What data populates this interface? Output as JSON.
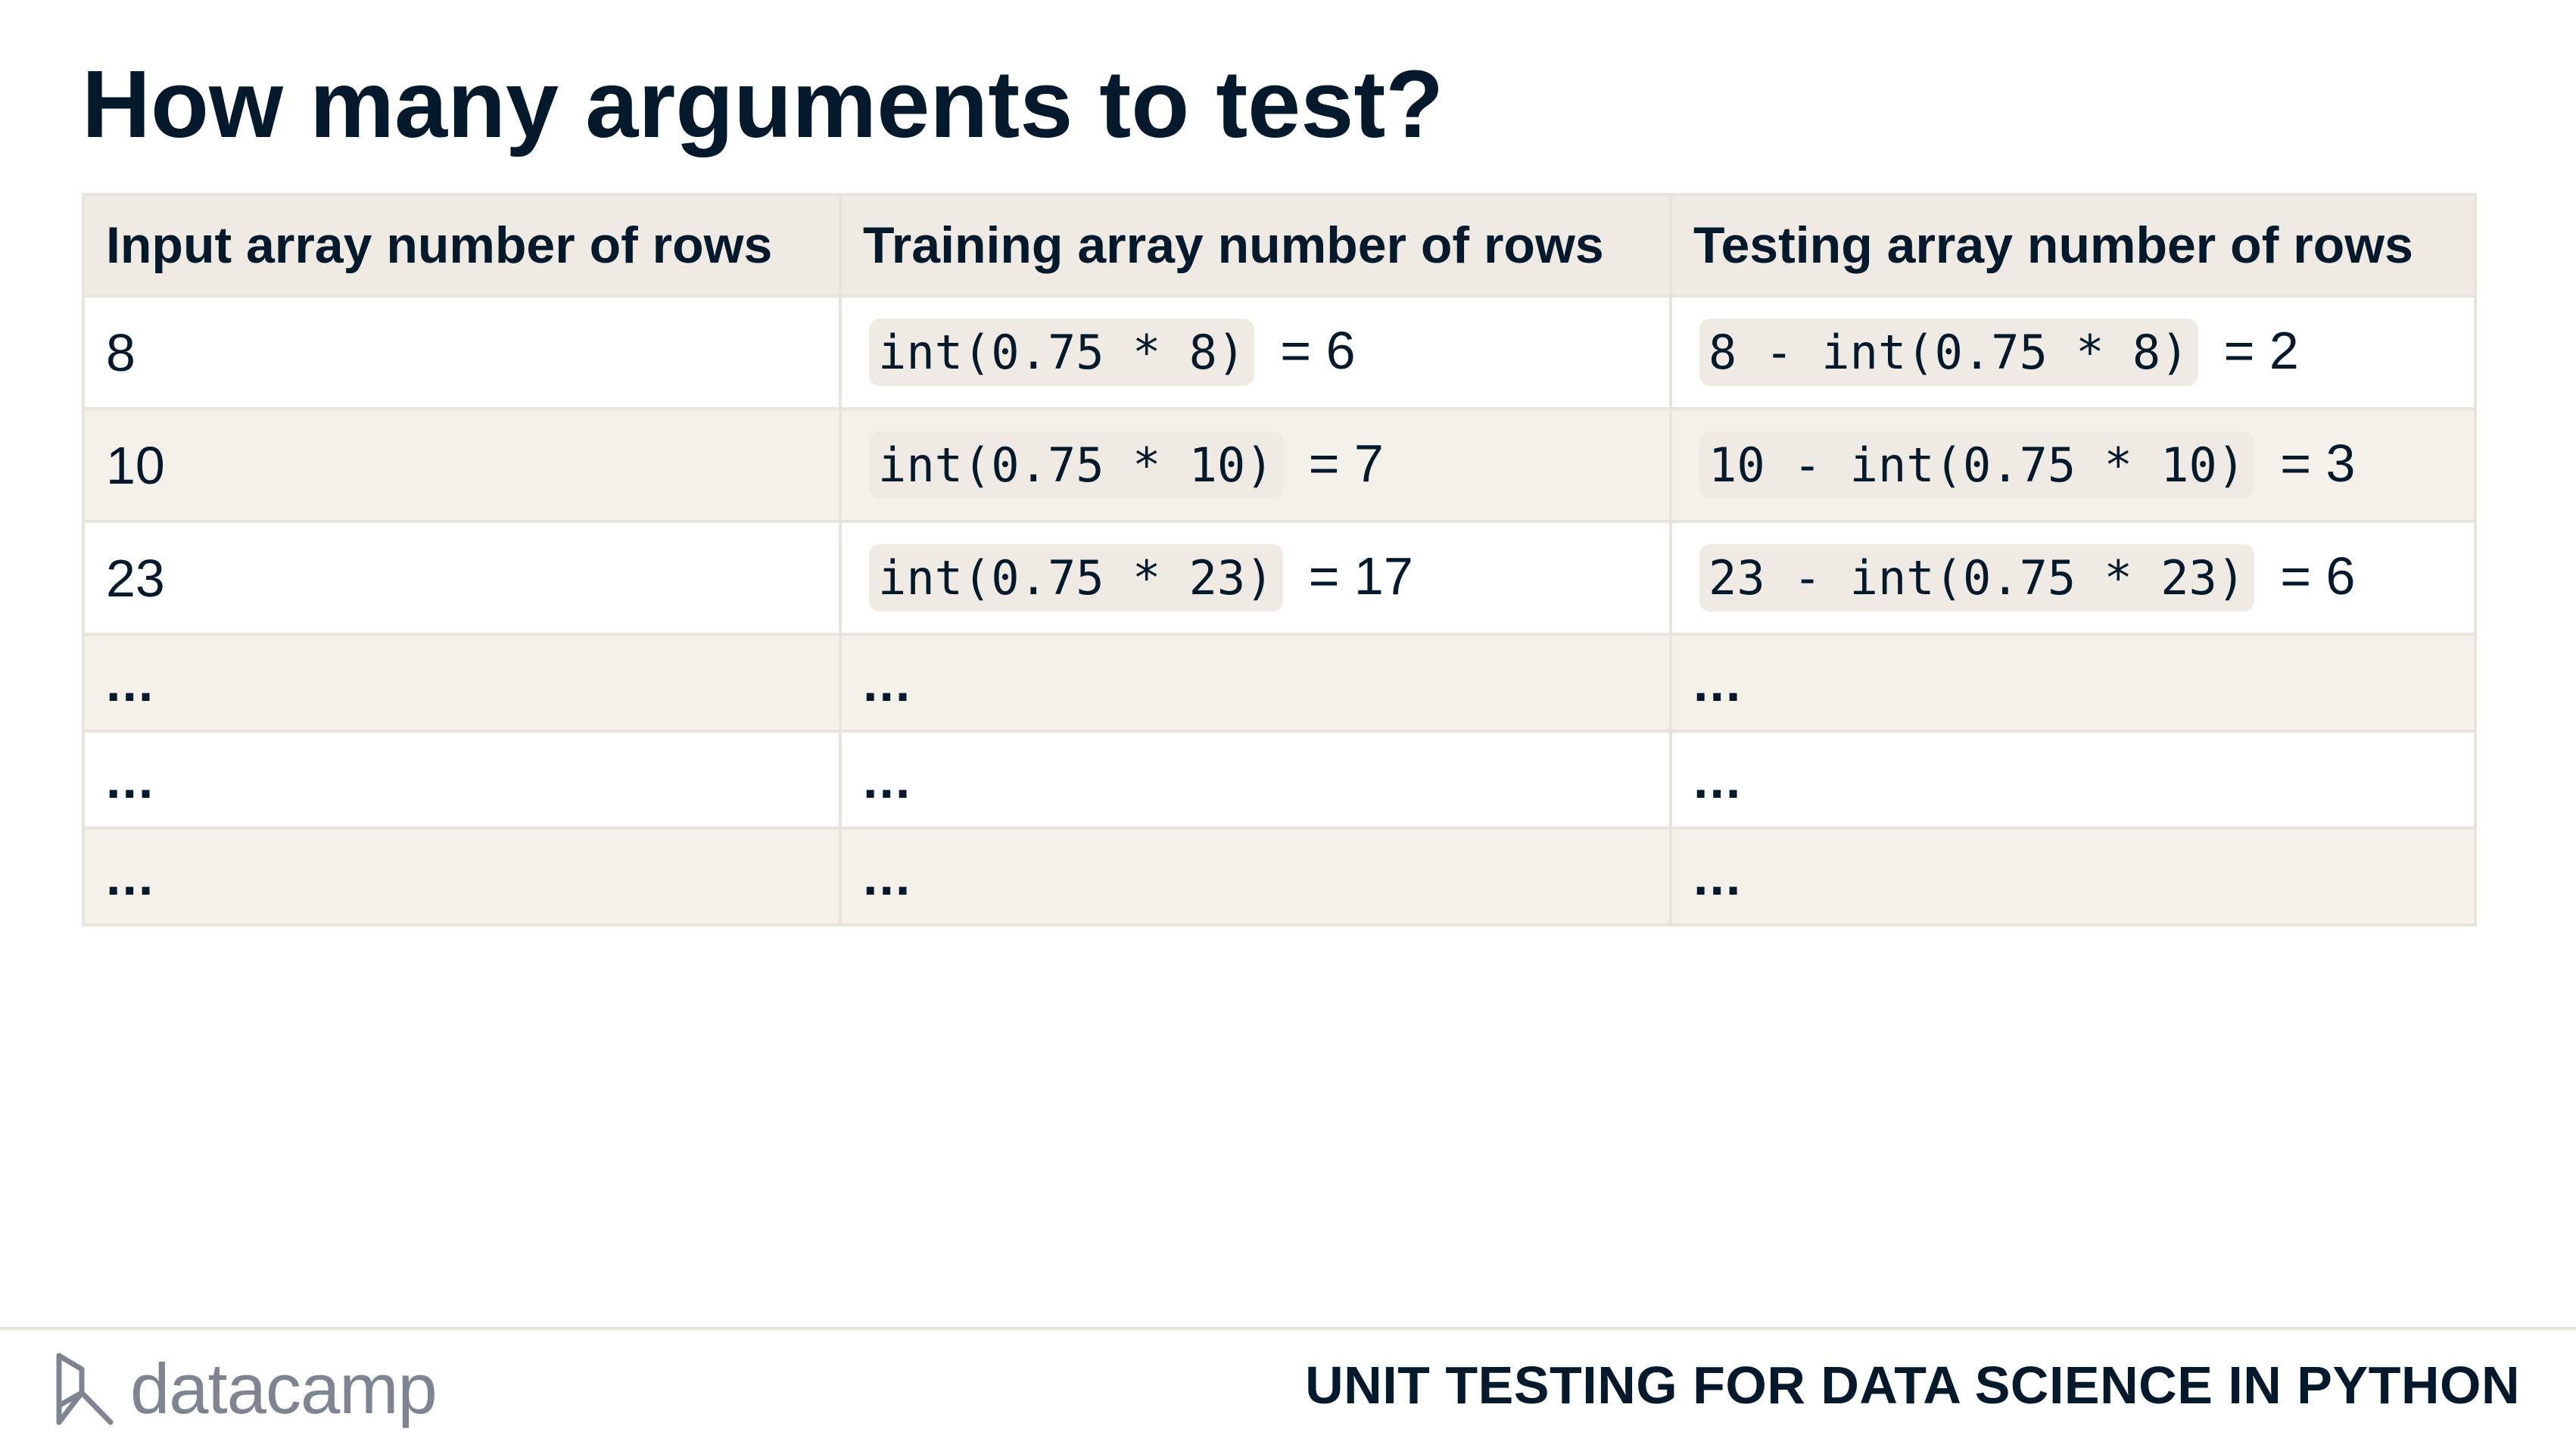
{
  "title": "How many arguments to test?",
  "table": {
    "headers": [
      "Input array number of rows",
      "Training array number of rows",
      "Testing array number of rows"
    ],
    "rows": [
      {
        "input": "8",
        "train_code": "int(0.75 * 8)",
        "train_result": "= 6",
        "test_code": "8 - int(0.75 * 8)",
        "test_result": "= 2"
      },
      {
        "input": "10",
        "train_code": "int(0.75 * 10)",
        "train_result": "= 7",
        "test_code": "10 - int(0.75 * 10)",
        "test_result": "= 3"
      },
      {
        "input": "23",
        "train_code": "int(0.75 * 23)",
        "train_result": "= 17",
        "test_code": "23 - int(0.75 * 23)",
        "test_result": "= 6"
      }
    ],
    "ellipsis_rows": [
      [
        "...",
        "...",
        "..."
      ],
      [
        "...",
        "...",
        "..."
      ],
      [
        "...",
        "...",
        "..."
      ]
    ]
  },
  "footer": {
    "logo_text": "datacamp",
    "course": "UNIT TESTING FOR DATA SCIENCE IN PYTHON"
  },
  "colors": {
    "text": "#05192d",
    "header_bg": "#efebe4",
    "stripe_bg": "#f4f1eb",
    "border": "#e8e4dc",
    "logo": "#7e8590"
  },
  "icons": {
    "logo": "datacamp-logo-icon"
  }
}
